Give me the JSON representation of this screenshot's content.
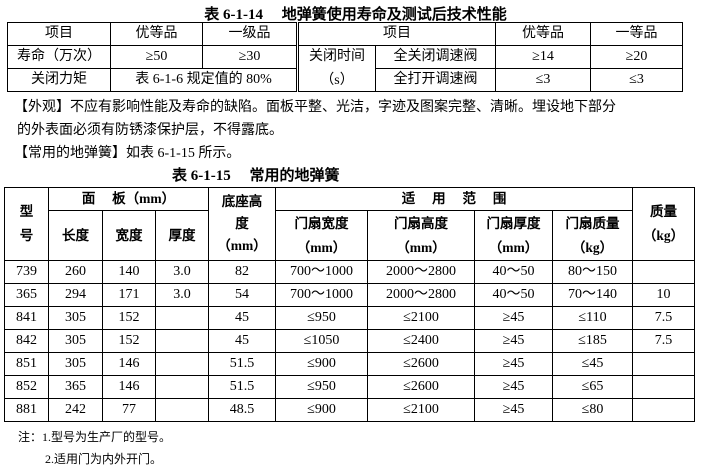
{
  "table1": {
    "title": "表 6-1-14　 地弹簧使用寿命及测试后技术性能",
    "header_left": [
      "项目",
      "优等品",
      "一级品"
    ],
    "header_right": [
      "项目",
      "优等品",
      "一等品"
    ],
    "row1": {
      "item": "寿命（万次）",
      "v1": "≥50",
      "v2": "≥30"
    },
    "row2": {
      "item": "关闭力矩",
      "v": "表 6-1-6 规定值的 80%"
    },
    "right_group": "关闭时间",
    "right_group_unit": "（s）",
    "right_rows": [
      {
        "item": "全关闭调速阀",
        "v1": "≥14",
        "v2": "≥20"
      },
      {
        "item": "全打开调速阀",
        "v1": "≤3",
        "v2": "≤3"
      }
    ]
  },
  "paragraphs": {
    "appearance_line1": "【外观】不应有影响性能及寿命的缺陷。面板平整、光洁，字迹及图案完整、清晰。埋设地下部分",
    "appearance_line2": "的外表面必须有防锈漆保护层，不得露底。",
    "common": "【常用的地弹簧】如表 6-1-15 所示。"
  },
  "table2": {
    "title": "表 6-1-15　 常用的地弹簧",
    "h_model": "型号",
    "h_model_1": "型",
    "h_model_2": "号",
    "h_panel": "面　 板（mm）",
    "h_length": "长度",
    "h_width": "宽度",
    "h_thick": "厚度",
    "h_base_1": "底座高",
    "h_base_2": "度",
    "h_base_3": "（mm）",
    "h_range": "适　 用　 范　 围",
    "h_door_w": [
      "门扇宽度",
      "（mm）"
    ],
    "h_door_h": [
      "门扇高度",
      "（mm）"
    ],
    "h_door_t": [
      "门扇厚度",
      "（mm）"
    ],
    "h_door_m": [
      "门扇质量",
      "（kg）"
    ],
    "h_mass": [
      "质量",
      "（kg）"
    ],
    "rows": [
      [
        "739",
        "260",
        "140",
        "3.0",
        "82",
        "700～1000",
        "2000～2800",
        "40～50",
        "80～150",
        ""
      ],
      [
        "365",
        "294",
        "171",
        "3.0",
        "54",
        "700～1000",
        "2000～2800",
        "40～50",
        "70～140",
        "10"
      ],
      [
        "841",
        "305",
        "152",
        "",
        "45",
        "≤950",
        "≤2100",
        "≥45",
        "≤110",
        "7.5"
      ],
      [
        "842",
        "305",
        "152",
        "",
        "45",
        "≤1050",
        "≤2400",
        "≥45",
        "≤185",
        "7.5"
      ],
      [
        "851",
        "305",
        "146",
        "",
        "51.5",
        "≤900",
        "≤2600",
        "≥45",
        "≤45",
        ""
      ],
      [
        "852",
        "365",
        "146",
        "",
        "51.5",
        "≤950",
        "≤2600",
        "≥45",
        "≤65",
        ""
      ],
      [
        "881",
        "242",
        "77",
        "",
        "48.5",
        "≤900",
        "≤2100",
        "≥45",
        "≤80",
        ""
      ]
    ]
  },
  "notes": [
    "注：1.型号为生产厂的型号。",
    "2.适用门为内外开门。"
  ]
}
